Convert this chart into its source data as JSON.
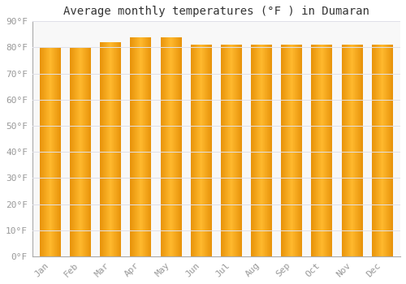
{
  "title": "Average monthly temperatures (°F ) in Dumaran",
  "months": [
    "Jan",
    "Feb",
    "Mar",
    "Apr",
    "May",
    "Jun",
    "Jul",
    "Aug",
    "Sep",
    "Oct",
    "Nov",
    "Dec"
  ],
  "values": [
    80,
    80,
    82,
    84,
    84,
    81,
    81,
    81,
    81,
    81,
    81,
    81
  ],
  "ylim": [
    0,
    90
  ],
  "yticks": [
    0,
    10,
    20,
    30,
    40,
    50,
    60,
    70,
    80,
    90
  ],
  "ytick_labels": [
    "0°F",
    "10°F",
    "20°F",
    "30°F",
    "40°F",
    "50°F",
    "60°F",
    "70°F",
    "80°F",
    "90°F"
  ],
  "bar_color_left": "#E8930A",
  "bar_color_center": "#FFB92E",
  "bar_color_right": "#E8930A",
  "background_color": "#FFFFFF",
  "plot_bg_color": "#F8F8F8",
  "grid_color": "#E0E0E8",
  "title_fontsize": 10,
  "tick_fontsize": 8,
  "bar_width": 0.7
}
